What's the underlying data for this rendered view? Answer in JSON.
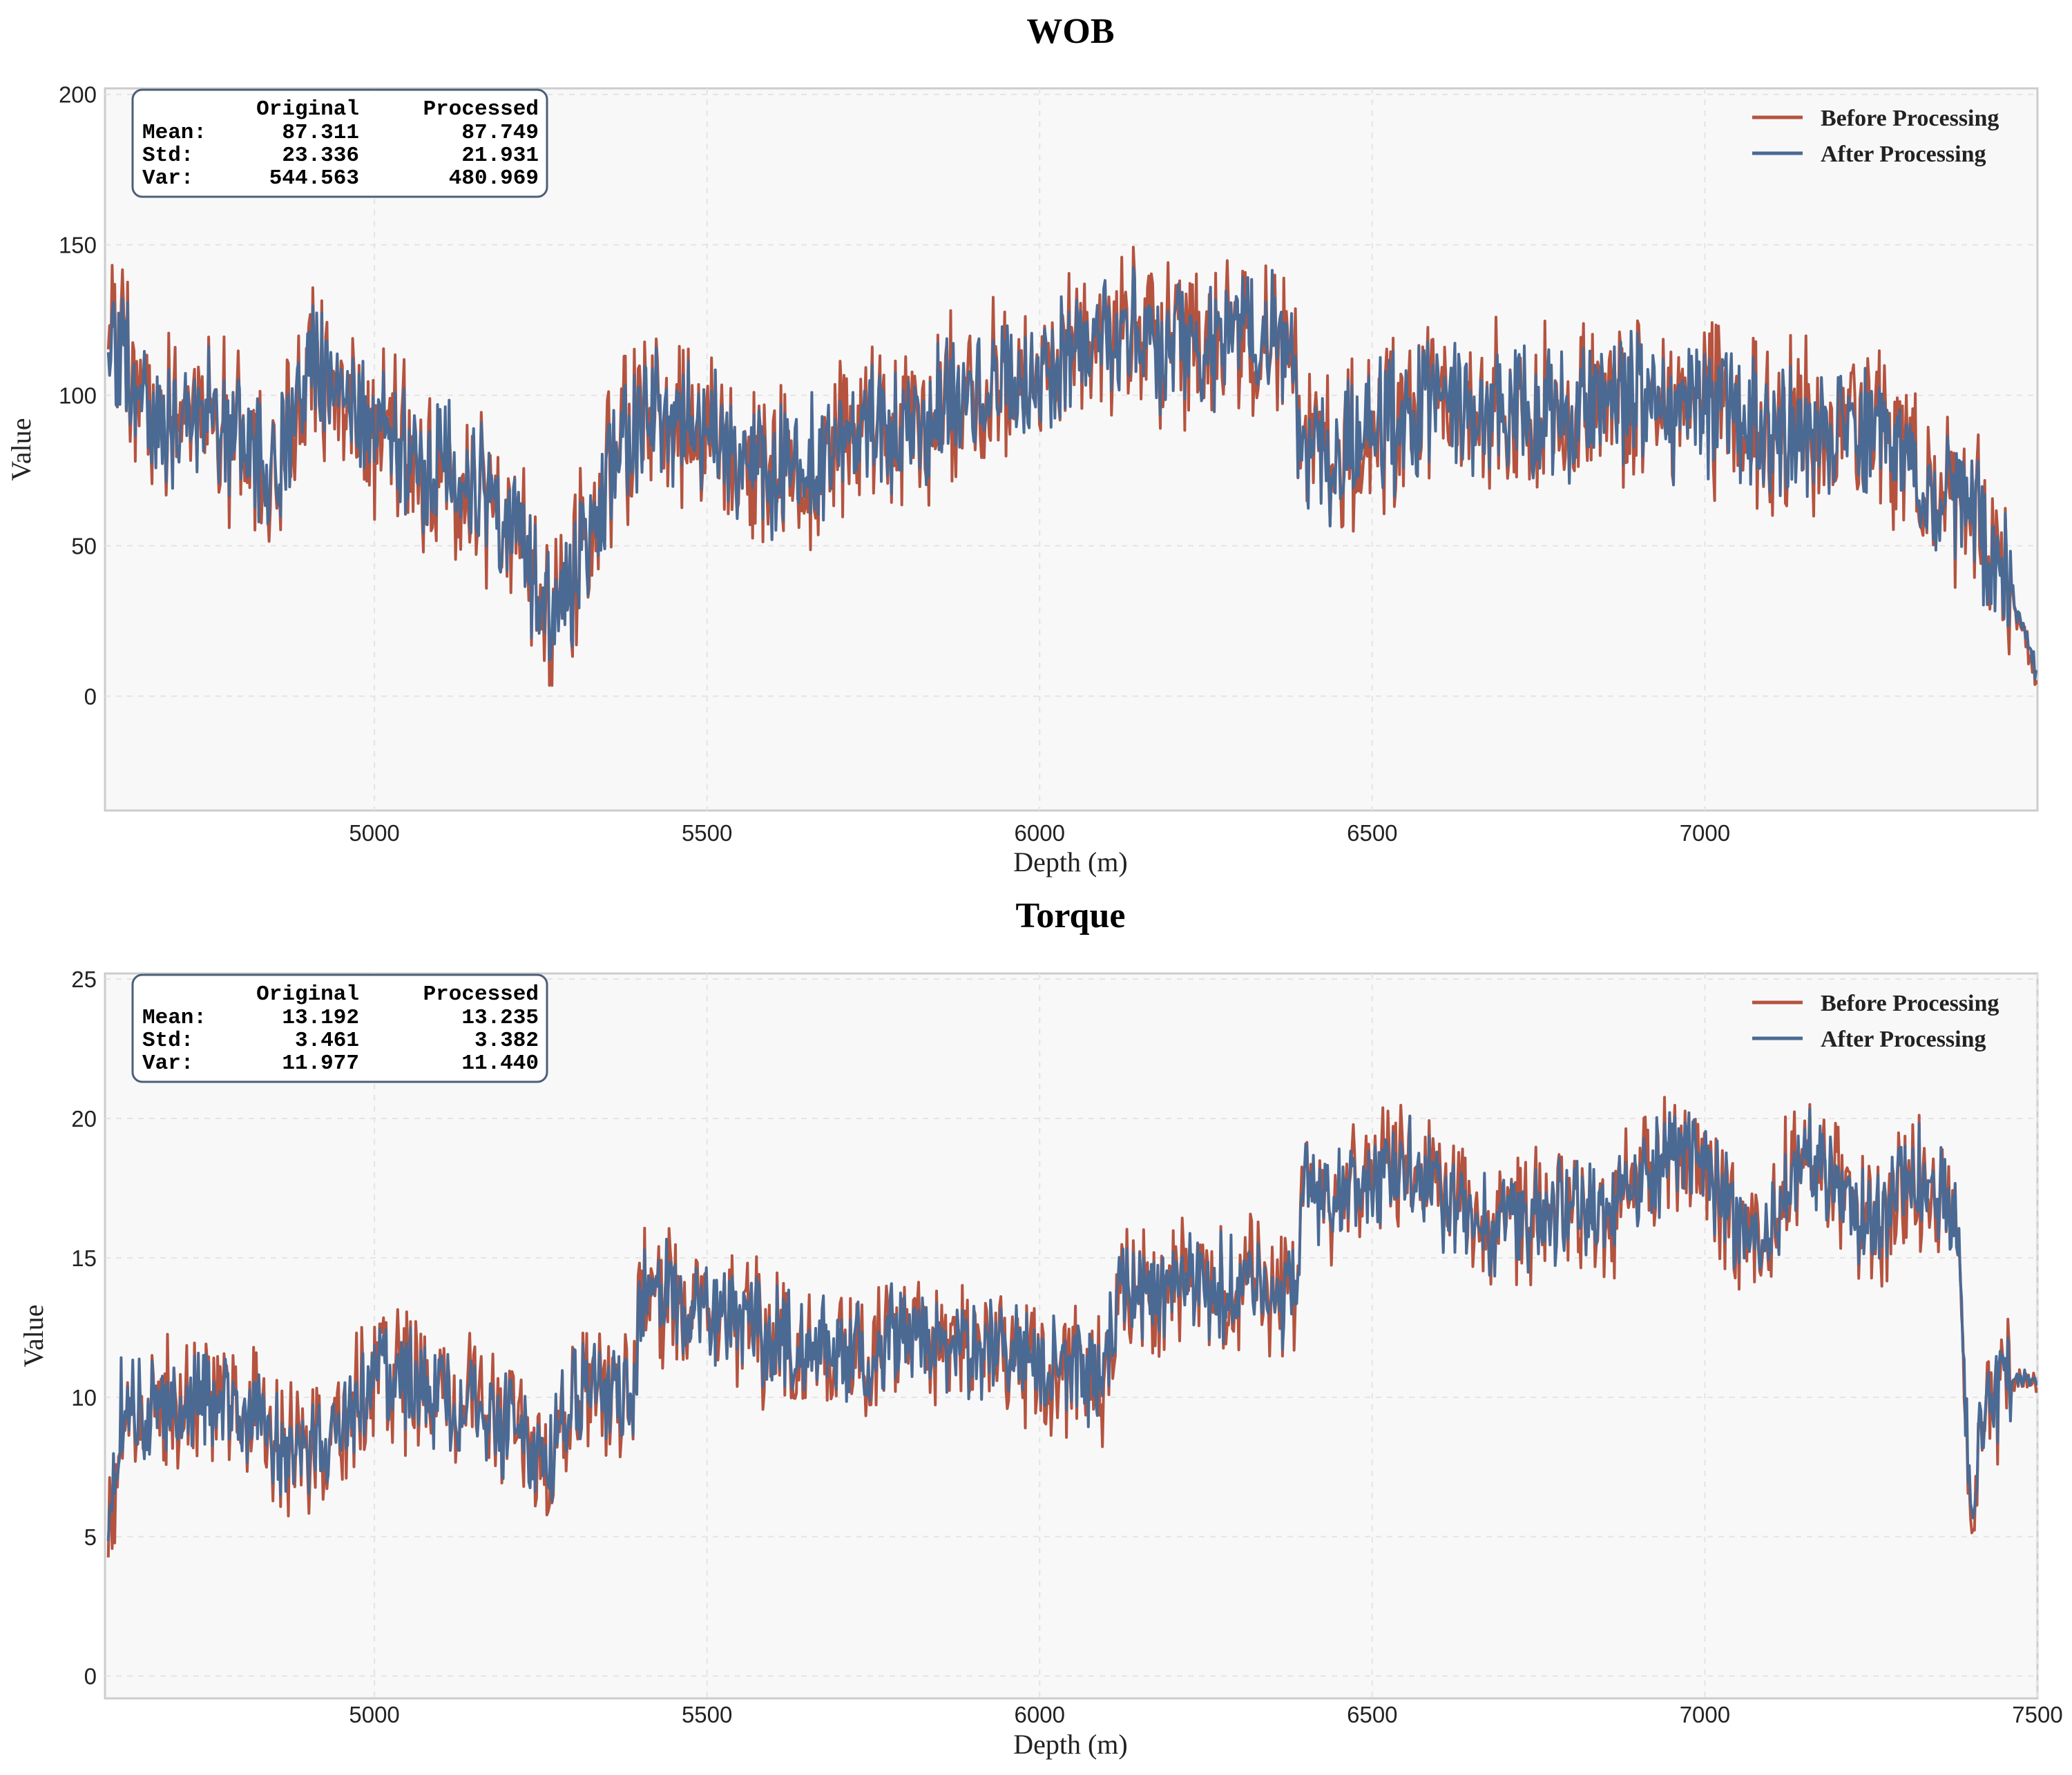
{
  "chart_data": [
    {
      "type": "line",
      "title": "WOB",
      "xlabel": "Depth (m)",
      "ylabel": "Value",
      "xlim": [
        4595,
        7500
      ],
      "ylim": [
        -38,
        202
      ],
      "xticks": [
        5000,
        5500,
        6000,
        6500,
        7000
      ],
      "yticks": [
        0,
        50,
        100,
        150,
        200
      ],
      "grid": true,
      "legend_position": "top-right",
      "stats": {
        "header": [
          "Original",
          "Processed"
        ],
        "rows": [
          {
            "label": "Mean:",
            "original": "87.311",
            "processed": "87.749"
          },
          {
            "label": "Std:",
            "original": "23.336",
            "processed": "21.931"
          },
          {
            "label": "Var:",
            "original": "544.563",
            "processed": "480.969"
          }
        ]
      },
      "series": [
        {
          "name": "Before Processing",
          "color": "#b5533f",
          "x": [
            4600,
            4650,
            4700,
            4750,
            4800,
            4850,
            4900,
            4950,
            5000,
            5050,
            5100,
            5150,
            5200,
            5250,
            5280,
            5300,
            5350,
            5400,
            5450,
            5500,
            5550,
            5600,
            5650,
            5700,
            5750,
            5800,
            5850,
            5900,
            5950,
            6000,
            6050,
            6100,
            6150,
            6200,
            6250,
            6300,
            6350,
            6380,
            6400,
            6450,
            6500,
            6550,
            6600,
            6650,
            6700,
            6750,
            6800,
            6850,
            6900,
            6950,
            7000,
            7050,
            7100,
            7150,
            7200,
            7250,
            7300,
            7350,
            7400,
            7450,
            7480,
            7500
          ],
          "values": [
            120,
            100,
            90,
            95,
            85,
            70,
            110,
            100,
            90,
            80,
            75,
            70,
            60,
            30,
            25,
            40,
            70,
            95,
            90,
            85,
            80,
            75,
            78,
            85,
            88,
            92,
            95,
            100,
            102,
            108,
            115,
            118,
            120,
            115,
            118,
            120,
            121,
            110,
            78,
            80,
            85,
            95,
            100,
            92,
            98,
            95,
            92,
            95,
            100,
            95,
            98,
            92,
            88,
            90,
            88,
            85,
            82,
            70,
            65,
            40,
            20,
            5
          ],
          "amplitude": 30
        },
        {
          "name": "After Processing",
          "color": "#4a6a94",
          "x": [
            4600,
            4650,
            4700,
            4750,
            4800,
            4850,
            4900,
            4950,
            5000,
            5050,
            5100,
            5150,
            5200,
            5250,
            5280,
            5300,
            5350,
            5400,
            5450,
            5500,
            5550,
            5600,
            5650,
            5700,
            5750,
            5800,
            5850,
            5900,
            5950,
            6000,
            6050,
            6100,
            6150,
            6200,
            6250,
            6300,
            6350,
            6380,
            6400,
            6450,
            6500,
            6550,
            6600,
            6650,
            6700,
            6750,
            6800,
            6850,
            6900,
            6950,
            7000,
            7050,
            7100,
            7150,
            7200,
            7250,
            7300,
            7350,
            7400,
            7450,
            7480,
            7500
          ],
          "values": [
            118,
            98,
            90,
            95,
            86,
            72,
            110,
            100,
            90,
            80,
            76,
            70,
            60,
            32,
            26,
            40,
            70,
            95,
            90,
            85,
            80,
            75,
            78,
            85,
            88,
            92,
            95,
            100,
            102,
            108,
            115,
            118,
            120,
            115,
            118,
            120,
            121,
            110,
            78,
            80,
            85,
            95,
            100,
            92,
            98,
            95,
            92,
            95,
            100,
            95,
            98,
            92,
            88,
            90,
            88,
            85,
            82,
            70,
            65,
            40,
            22,
            6
          ],
          "amplitude": 24
        }
      ]
    },
    {
      "type": "line",
      "title": "Torque",
      "xlabel": "Depth (m)",
      "ylabel": "Value",
      "xlim": [
        4595,
        7500
      ],
      "ylim": [
        -0.8,
        25.2
      ],
      "xticks": [
        5000,
        5500,
        6000,
        6500,
        7000,
        7500
      ],
      "yticks": [
        0,
        5,
        10,
        15,
        20,
        25
      ],
      "grid": true,
      "legend_position": "top-right",
      "stats": {
        "header": [
          "Original",
          "Processed"
        ],
        "rows": [
          {
            "label": "Mean:",
            "original": "13.192",
            "processed": "13.235"
          },
          {
            "label": "Std:",
            "original": "3.461",
            "processed": "3.382"
          },
          {
            "label": "Var:",
            "original": "11.977",
            "processed": "11.440"
          }
        ]
      },
      "series": [
        {
          "name": "Before Processing",
          "color": "#b5533f",
          "x": [
            4600,
            4620,
            4650,
            4700,
            4750,
            4800,
            4850,
            4900,
            4950,
            5000,
            5050,
            5100,
            5150,
            5200,
            5250,
            5270,
            5300,
            5350,
            5390,
            5400,
            5450,
            5500,
            5550,
            5600,
            5650,
            5700,
            5750,
            5800,
            5850,
            5900,
            5950,
            6000,
            6050,
            6100,
            6120,
            6150,
            6200,
            6250,
            6300,
            6350,
            6380,
            6400,
            6450,
            6500,
            6550,
            6600,
            6650,
            6700,
            6750,
            6800,
            6850,
            6900,
            6950,
            7000,
            7050,
            7100,
            7150,
            7200,
            7250,
            7300,
            7350,
            7380,
            7400,
            7420,
            7450,
            7500
          ],
          "values": [
            5.5,
            9.5,
            9.5,
            10,
            10,
            9.5,
            8.5,
            8,
            9,
            11,
            10.5,
            10,
            9.5,
            9,
            8,
            8,
            10,
            10.5,
            9.5,
            14,
            13.5,
            13,
            12.5,
            12,
            12,
            11.5,
            11.5,
            12.5,
            12,
            11.5,
            12,
            11,
            11,
            11,
            14,
            14,
            14,
            14,
            14,
            13.5,
            13.5,
            17.5,
            17,
            18,
            18.5,
            17,
            16,
            16.5,
            16.5,
            17,
            16.5,
            17.5,
            19,
            18.5,
            16,
            16.5,
            18.5,
            17.5,
            16,
            18,
            17.5,
            16.5,
            5,
            9.5,
            10.5,
            10.5
          ],
          "amplitude": 2.6
        },
        {
          "name": "After Processing",
          "color": "#4a6a94",
          "x": [
            4600,
            4620,
            4650,
            4700,
            4750,
            4800,
            4850,
            4900,
            4950,
            5000,
            5050,
            5100,
            5150,
            5200,
            5250,
            5270,
            5300,
            5350,
            5390,
            5400,
            5450,
            5500,
            5550,
            5600,
            5650,
            5700,
            5750,
            5800,
            5850,
            5900,
            5950,
            6000,
            6050,
            6100,
            6120,
            6150,
            6200,
            6250,
            6300,
            6350,
            6380,
            6400,
            6450,
            6500,
            6550,
            6600,
            6650,
            6700,
            6750,
            6800,
            6850,
            6900,
            6950,
            7000,
            7050,
            7100,
            7150,
            7200,
            7250,
            7300,
            7350,
            7380,
            7400,
            7420,
            7450,
            7500
          ],
          "values": [
            5.8,
            9.5,
            9.5,
            10,
            10,
            9.5,
            8.5,
            8,
            9,
            11,
            10.5,
            10,
            9.5,
            9,
            8,
            8,
            10,
            10.5,
            9.5,
            14,
            13.5,
            13,
            12.5,
            12,
            12,
            11.5,
            11.5,
            12.5,
            12,
            11.5,
            12,
            11,
            11,
            11,
            14,
            14,
            14,
            14,
            14,
            13.5,
            13.5,
            17.5,
            17,
            18,
            18.5,
            17,
            16,
            16.5,
            16.5,
            17,
            16.5,
            17.5,
            19,
            18.5,
            16,
            16.5,
            18.5,
            17.5,
            16,
            18,
            17.5,
            16.5,
            5.5,
            9.8,
            10.6,
            10.6
          ],
          "amplitude": 2.0
        }
      ]
    }
  ]
}
